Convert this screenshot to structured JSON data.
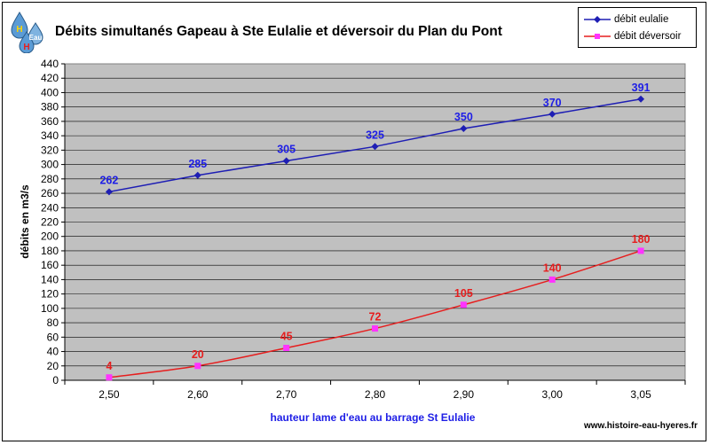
{
  "logo": {
    "text_top": "H",
    "text_mid": "Eau",
    "text_bottom": "H"
  },
  "credit": "www.histoire-eau-hyeres.fr",
  "chart_data": {
    "type": "line",
    "title": "Débits simultanés Gapeau à Ste Eulalie et déversoir du Plan du Pont",
    "xlabel": "hauteur lame d'eau au barrage St Eulalie",
    "ylabel": "débits en m3/s",
    "categories": [
      "2,50",
      "2,60",
      "2,70",
      "2,80",
      "2,90",
      "3,00",
      "3,05"
    ],
    "ylim": [
      0,
      440
    ],
    "ytick_step": 20,
    "grid": true,
    "legend_position": "top-right",
    "series": [
      {
        "name": "débit eulalie",
        "values": [
          262,
          285,
          305,
          325,
          350,
          370,
          391
        ],
        "color": "#1e1eb4",
        "marker": "diamond",
        "label_color": "#1e1ee6"
      },
      {
        "name": "débit déversoir",
        "values": [
          4,
          20,
          45,
          72,
          105,
          140,
          180
        ],
        "color": "#e61e1e",
        "marker": "square",
        "marker_color": "#ff33ff",
        "label_color": "#e61e1e"
      }
    ]
  }
}
